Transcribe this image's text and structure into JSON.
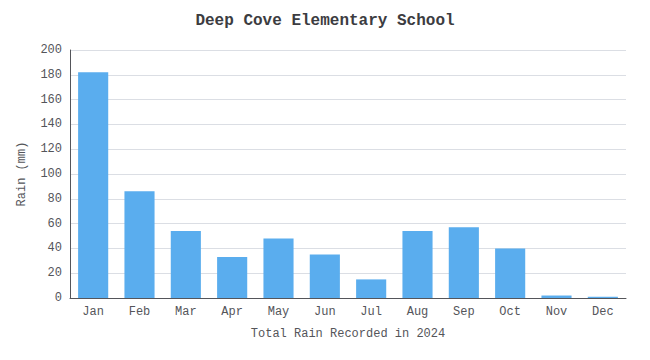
{
  "chart_data": {
    "type": "bar",
    "title": "Deep Cove Elementary School",
    "xlabel": "Total Rain Recorded in 2024",
    "ylabel": "Rain (mm)",
    "categories": [
      "Jan",
      "Feb",
      "Mar",
      "Apr",
      "May",
      "Jun",
      "Jul",
      "Aug",
      "Sep",
      "Oct",
      "Nov",
      "Dec"
    ],
    "values": [
      182,
      86,
      54,
      33,
      48,
      35,
      15,
      54,
      57,
      40,
      2,
      1
    ],
    "color": "#5aadee",
    "ylim": [
      0,
      200
    ],
    "yticks": [
      0,
      20,
      40,
      60,
      80,
      100,
      120,
      140,
      160,
      180,
      200
    ],
    "grid": true
  }
}
